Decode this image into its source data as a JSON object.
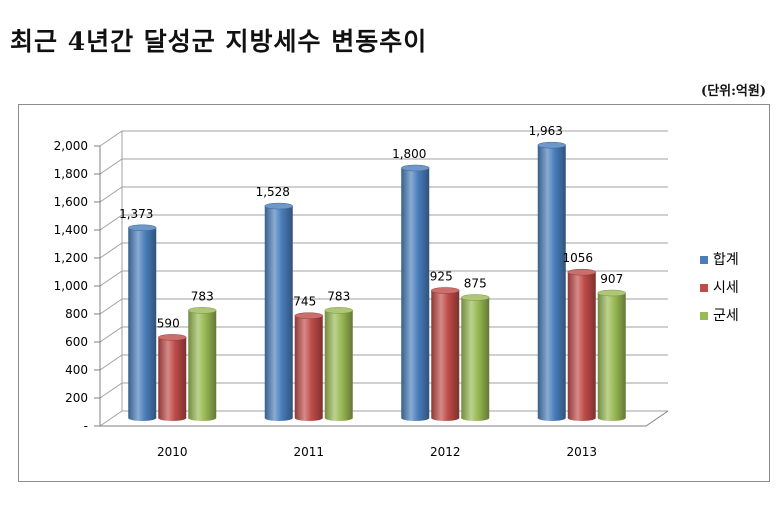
{
  "title": "최근 4년간 달성군 지방세수 변동추이",
  "unit_label": "(단위:억원)",
  "chart_data": {
    "type": "bar",
    "categories": [
      "2010",
      "2011",
      "2012",
      "2013"
    ],
    "series": [
      {
        "name": "합계",
        "values": [
          1373,
          1528,
          1800,
          1963
        ],
        "labels": [
          "1,373",
          "1,528",
          "1,800",
          "1,963"
        ],
        "color": "#4a7ebb"
      },
      {
        "name": "시세",
        "values": [
          590,
          745,
          925,
          1056
        ],
        "labels": [
          "590",
          "745",
          "925",
          "1056"
        ],
        "color": "#be4b48"
      },
      {
        "name": "군세",
        "values": [
          783,
          783,
          875,
          907
        ],
        "labels": [
          "783",
          "783",
          "875",
          "907"
        ],
        "color": "#98b954"
      }
    ],
    "ylim": [
      0,
      2000
    ],
    "yticks": [
      "-",
      "200",
      "400",
      "600",
      "800",
      "1,000",
      "1,200",
      "1,400",
      "1,600",
      "1,800",
      "2,000"
    ],
    "grid": true,
    "legend_position": "right"
  }
}
